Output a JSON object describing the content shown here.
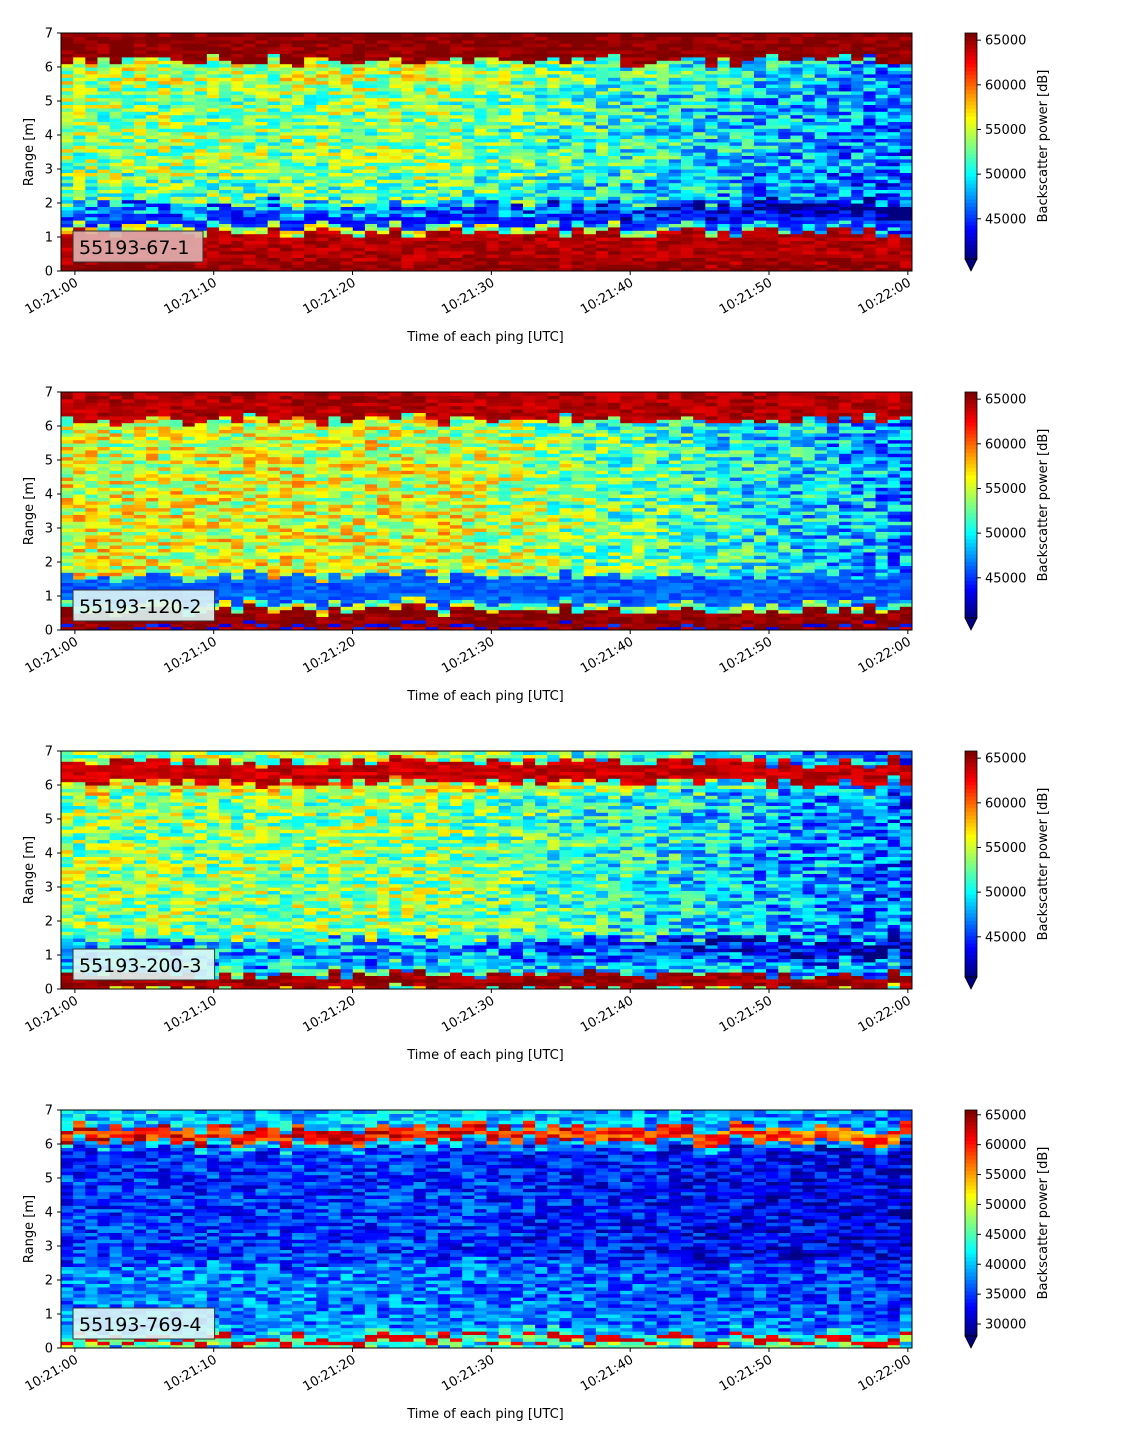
{
  "chart_data": [
    {
      "type": "heatmap",
      "panel_label": "55193-67-1",
      "xlabel": "Time of each ping [UTC]",
      "ylabel": "Range [m]",
      "xticks": [
        "10:21:00",
        "10:21:10",
        "10:21:20",
        "10:21:30",
        "10:21:40",
        "10:21:50",
        "10:22:00"
      ],
      "xlim_seconds": [
        -1,
        60.3
      ],
      "ylim": [
        0,
        7
      ],
      "yticks": [
        0,
        1,
        2,
        3,
        4,
        5,
        6,
        7
      ],
      "colorbar": {
        "label": "Backscatter power [dB]",
        "ticks": [
          45000,
          50000,
          55000,
          60000,
          65000
        ],
        "range": [
          40500,
          65800
        ],
        "extend": "min",
        "colormap": "jet"
      },
      "bands": [
        {
          "from": 0.0,
          "to": 0.25,
          "level": 65500
        },
        {
          "from": 0.25,
          "to": 1.15,
          "level": 64500
        },
        {
          "from": 1.15,
          "to": 1.35,
          "level": 54000
        },
        {
          "from": 1.35,
          "to": 1.6,
          "level": 44500
        },
        {
          "from": 1.6,
          "to": 2.0,
          "level": 47000
        },
        {
          "from": 2.0,
          "to": 2.8,
          "level": 52500
        },
        {
          "from": 2.8,
          "to": 5.4,
          "level": 53500
        },
        {
          "from": 5.4,
          "to": 6.2,
          "level": 54500
        },
        {
          "from": 6.2,
          "to": 7.0,
          "level": 65500
        }
      ],
      "trend_late": -7000
    },
    {
      "type": "heatmap",
      "panel_label": "55193-120-2",
      "xlabel": "Time of each ping [UTC]",
      "ylabel": "Range [m]",
      "xticks": [
        "10:21:00",
        "10:21:10",
        "10:21:20",
        "10:21:30",
        "10:21:40",
        "10:21:50",
        "10:22:00"
      ],
      "xlim_seconds": [
        -1,
        60.3
      ],
      "ylim": [
        0,
        7
      ],
      "yticks": [
        0,
        1,
        2,
        3,
        4,
        5,
        6,
        7
      ],
      "colorbar": {
        "label": "Backscatter power [dB]",
        "ticks": [
          45000,
          50000,
          55000,
          60000,
          65000
        ],
        "range": [
          40500,
          65800
        ],
        "extend": "min",
        "colormap": "jet"
      },
      "bands": [
        {
          "from": 0.0,
          "to": 0.1,
          "level": 44000
        },
        {
          "from": 0.1,
          "to": 0.6,
          "level": 65500
        },
        {
          "from": 0.6,
          "to": 0.8,
          "level": 54000
        },
        {
          "from": 0.8,
          "to": 1.6,
          "level": 46000
        },
        {
          "from": 1.6,
          "to": 5.5,
          "level": 55500
        },
        {
          "from": 5.5,
          "to": 6.2,
          "level": 55000
        },
        {
          "from": 6.2,
          "to": 7.0,
          "level": 64500
        }
      ],
      "trend_late": -8000
    },
    {
      "type": "heatmap",
      "panel_label": "55193-200-3",
      "xlabel": "Time of each ping [UTC]",
      "ylabel": "Range [m]",
      "xticks": [
        "10:21:00",
        "10:21:10",
        "10:21:20",
        "10:21:30",
        "10:21:40",
        "10:21:50",
        "10:22:00"
      ],
      "xlim_seconds": [
        -1,
        60.3
      ],
      "ylim": [
        0,
        7
      ],
      "yticks": [
        0,
        1,
        2,
        3,
        4,
        5,
        6,
        7
      ],
      "colorbar": {
        "label": "Backscatter power [dB]",
        "ticks": [
          45000,
          50000,
          55000,
          60000,
          65000
        ],
        "range": [
          40500,
          65800
        ],
        "extend": "min",
        "colormap": "jet"
      },
      "bands": [
        {
          "from": 0.0,
          "to": 0.45,
          "level": 65000
        },
        {
          "from": 0.45,
          "to": 0.7,
          "level": 50000
        },
        {
          "from": 0.7,
          "to": 1.5,
          "level": 48000
        },
        {
          "from": 1.5,
          "to": 5.8,
          "level": 53500
        },
        {
          "from": 5.8,
          "to": 6.1,
          "level": 56000
        },
        {
          "from": 6.1,
          "to": 6.7,
          "level": 64000
        },
        {
          "from": 6.7,
          "to": 7.0,
          "level": 54000
        }
      ],
      "trend_late": -7500
    },
    {
      "type": "heatmap",
      "panel_label": "55193-769-4",
      "xlabel": "Time of each ping [UTC]",
      "ylabel": "Range [m]",
      "xticks": [
        "10:21:00",
        "10:21:10",
        "10:21:20",
        "10:21:30",
        "10:21:40",
        "10:21:50",
        "10:22:00"
      ],
      "xlim_seconds": [
        -1,
        60.3
      ],
      "ylim": [
        0,
        7
      ],
      "yticks": [
        0,
        1,
        2,
        3,
        4,
        5,
        6,
        7
      ],
      "colorbar": {
        "label": "Backscatter power [dB]",
        "ticks": [
          30000,
          35000,
          40000,
          45000,
          50000,
          55000,
          60000,
          65000
        ],
        "range": [
          28000,
          65800
        ],
        "extend": "min",
        "colormap": "jet"
      },
      "bands": [
        {
          "from": 0.0,
          "to": 0.2,
          "level": 47000
        },
        {
          "from": 0.2,
          "to": 0.35,
          "level": 62000
        },
        {
          "from": 0.35,
          "to": 0.55,
          "level": 42000
        },
        {
          "from": 0.55,
          "to": 2.5,
          "level": 37500
        },
        {
          "from": 2.5,
          "to": 5.9,
          "level": 34500
        },
        {
          "from": 5.9,
          "to": 6.1,
          "level": 40000
        },
        {
          "from": 6.1,
          "to": 6.5,
          "level": 60500
        },
        {
          "from": 6.5,
          "to": 7.0,
          "level": 40000
        }
      ],
      "trend_late": -3000
    }
  ]
}
